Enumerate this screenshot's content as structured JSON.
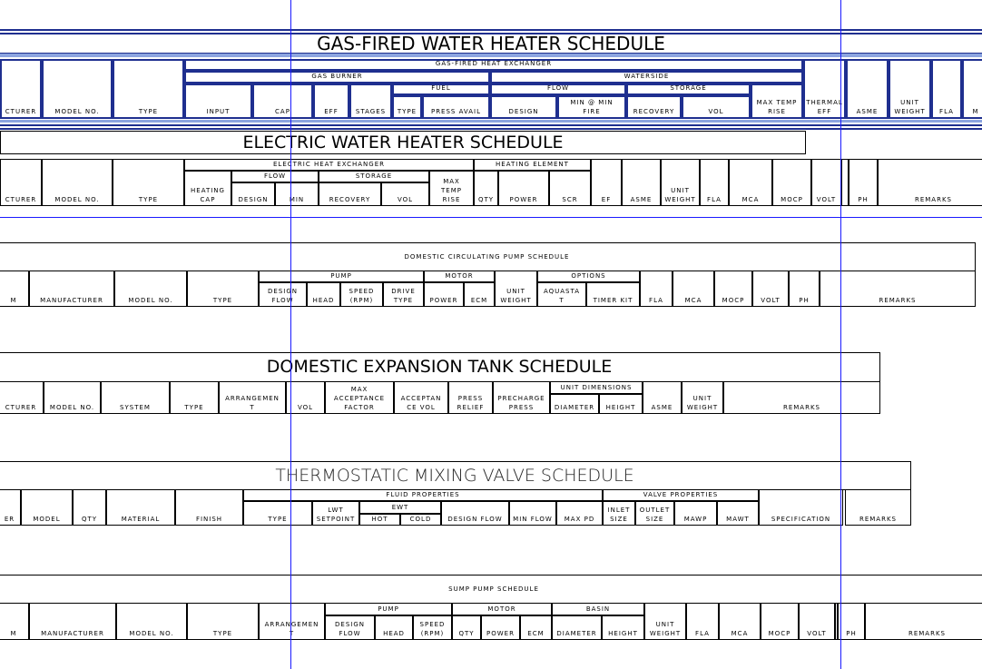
{
  "schedules": [
    {
      "title": "GAS-FIRED WATER HEATER SCHEDULE",
      "columns": [
        "CTURER",
        "MODEL NO.",
        "TYPE",
        "GAS-FIRED HEAT EXCHANGER",
        "GAS BURNER",
        "WATERSIDE",
        "INPUT",
        "CAP",
        "EFF",
        "STAGES",
        "FUEL",
        "TYPE",
        "PRESS AVAIL",
        "FLOW",
        "DESIGN",
        "MIN @ MIN\nFIRE",
        "STORAGE",
        "RECOVERY",
        "VOL",
        "MAX TEMP\nRISE",
        "THERMAL\nEFF",
        "ASME",
        "UNIT\nWEIGHT",
        "FLA",
        "M"
      ]
    },
    {
      "title": "ELECTRIC WATER HEATER SCHEDULE",
      "columns": [
        "CTURER",
        "MODEL NO.",
        "TYPE",
        "ELECTRIC HEAT EXCHANGER",
        "HEATING\nCAP",
        "FLOW",
        "DESIGN",
        "MIN",
        "STORAGE",
        "RECOVERY",
        "VOL",
        "MAX\nTEMP\nRISE",
        "HEATING ELEMENT",
        "QTY",
        "POWER",
        "SCR",
        "EF",
        "ASME",
        "UNIT\nWEIGHT",
        "FLA",
        "MCA",
        "MOCP",
        "VOLT",
        "",
        "PH",
        "REMARKS"
      ]
    },
    {
      "title": "DOMESTIC CIRCULATING PUMP SCHEDULE",
      "columns": [
        "M",
        "MANUFACTURER",
        "MODEL NO.",
        "TYPE",
        "PUMP",
        "DESIGN\nFLOW",
        "HEAD",
        "SPEED\n(RPM)",
        "DRIVE\nTYPE",
        "MOTOR",
        "POWER",
        "ECM",
        "UNIT\nWEIGHT",
        "OPTIONS",
        "AQUASTA\nT",
        "TIMER KIT",
        "FLA",
        "MCA",
        "MOCP",
        "VOLT",
        "PH",
        "REMARKS"
      ]
    },
    {
      "title": "DOMESTIC EXPANSION TANK SCHEDULE",
      "columns": [
        "CTURER",
        "MODEL NO.",
        "SYSTEM",
        "TYPE",
        "ARRANGEMEN\nT",
        "VOL",
        "MAX\nACCEPTANCE\nFACTOR",
        "ACCEPTAN\nCE VOL",
        "PRESS\nRELIEF",
        "PRECHARGE\nPRESS",
        "UNIT DIMENSIONS",
        "DIAMETER",
        "HEIGHT",
        "ASME",
        "UNIT\nWEIGHT",
        "REMARKS"
      ]
    },
    {
      "title": "THERMOSTATIC MIXING VALVE SCHEDULE",
      "columns": [
        "ER",
        "MODEL",
        "QTY",
        "MATERIAL",
        "FINISH",
        "FLUID PROPERTIES",
        "TYPE",
        "LWT\nSETPOINT",
        "EWT",
        "HOT",
        "COLD",
        "DESIGN FLOW",
        "MIN FLOW",
        "MAX PD",
        "VALVE PROPERTIES",
        "INLET\nSIZE",
        "OUTLET\nSIZE",
        "MAWP",
        "MAWT",
        "SPECIFICATION",
        "REMARKS"
      ]
    },
    {
      "title": "SUMP PUMP SCHEDULE",
      "columns": [
        "M",
        "MANUFACTURER",
        "MODEL NO.",
        "TYPE",
        "ARRANGEMEN\nT",
        "PUMP",
        "DESIGN\nFLOW",
        "HEAD",
        "SPEED\n(RPM)",
        "MOTOR",
        "QTY",
        "POWER",
        "ECM",
        "BASIN",
        "DIAMETER",
        "HEIGHT",
        "UNIT\nWEIGHT",
        "FLA",
        "MCA",
        "MOCP",
        "VOLT",
        "",
        "PH",
        "REMARKS"
      ]
    }
  ],
  "colors": {
    "selected_line": "#1f2f8f",
    "selected_band": "#8ca4e0",
    "guide_line": "#1a1aff"
  }
}
